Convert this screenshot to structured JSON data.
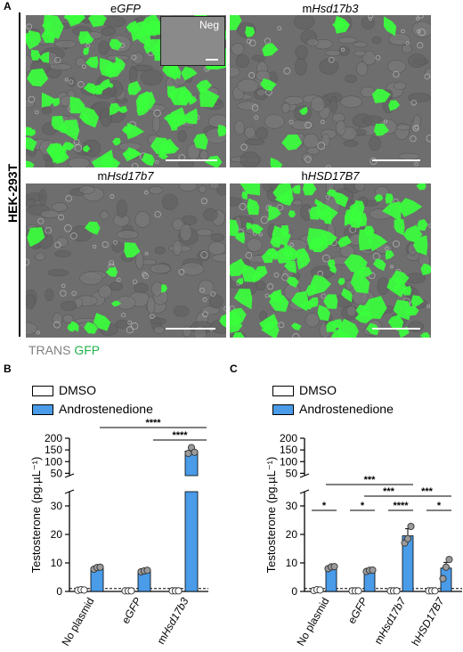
{
  "panel_a": {
    "letter": "A",
    "cell_line": "HEK-293T",
    "images": [
      {
        "title": "eGFP",
        "prefix": "e",
        "gene": "GFP",
        "green_density": 0.9
      },
      {
        "title": "mHsd17b3",
        "prefix": "m",
        "gene": "Hsd17b3",
        "green_density": 0.12
      },
      {
        "title": "mHsd17b7",
        "prefix": "m",
        "gene": "Hsd17b7",
        "green_density": 0.1
      },
      {
        "title": "hHSD17B7",
        "prefix": "h",
        "gene": "HSD17B7",
        "green_density": 0.95
      }
    ],
    "inset_label": "Neg",
    "caption_trans": "TRANS",
    "caption_gfp": "GFP",
    "colors": {
      "trans": "#808080",
      "gfp": "#22b14c",
      "fluor": "#39ff3c"
    }
  },
  "chart_data": [
    {
      "panel": "B",
      "type": "bar",
      "categories": [
        "No plasmid",
        "eGFP",
        "mHsd17b3"
      ],
      "series": [
        {
          "name": "DMSO",
          "values": [
            0.5,
            0.2,
            0.2
          ],
          "points": [
            [
              0.4,
              0.6,
              0.5
            ],
            [
              0.2,
              0.2,
              0.2
            ],
            [
              0.2,
              0.2,
              0.2
            ]
          ],
          "color": "#ffffff"
        },
        {
          "name": "Androstenedione",
          "values": [
            8.2,
            7.2,
            145
          ],
          "points": [
            [
              7.8,
              8.4,
              8.5
            ],
            [
              6.9,
              7.2,
              7.4
            ],
            [
              135,
              160,
              140
            ]
          ],
          "color": "#4a9be8"
        }
      ],
      "ylabel": "Testosterone (pg.µL⁻¹)",
      "ylim_lower": [
        0,
        35
      ],
      "ylim_upper": [
        40,
        200
      ],
      "yticks_lower": [
        0,
        10,
        20,
        30
      ],
      "yticks_upper": [
        50,
        100,
        150,
        200
      ],
      "dashed_line": 1,
      "annotations": [
        {
          "from": 0,
          "to": 2,
          "text": "****"
        },
        {
          "from": 1,
          "to": 2,
          "text": "****"
        }
      ]
    },
    {
      "panel": "C",
      "type": "bar",
      "categories": [
        "No plasmid",
        "eGFP",
        "mHsd17b7",
        "hHSD17B7"
      ],
      "series": [
        {
          "name": "DMSO",
          "values": [
            0.5,
            0.2,
            0.2,
            0.2
          ],
          "points": [
            [
              0.3,
              0.6,
              0.5
            ],
            [
              0.2,
              0.2,
              0.2
            ],
            [
              0.2,
              0.2,
              0.2
            ],
            [
              0.2,
              0.2,
              0.2
            ]
          ],
          "color": "#ffffff"
        },
        {
          "name": "Androstenedione",
          "values": [
            8.4,
            7.3,
            19.5,
            8.2
          ],
          "points": [
            [
              8.0,
              8.6,
              8.7
            ],
            [
              7.0,
              7.4,
              7.5
            ],
            [
              17.0,
              18.5,
              22.8
            ],
            [
              4.5,
              8.5,
              11.2
            ]
          ],
          "errors": [
            0.3,
            0.3,
            2.5,
            2.0
          ],
          "color": "#4a9be8"
        }
      ],
      "ylabel": "Testosterone (pg.µL⁻¹)",
      "ylim_lower": [
        0,
        35
      ],
      "ylim_upper": [
        40,
        200
      ],
      "yticks_lower": [
        0,
        10,
        20,
        30
      ],
      "yticks_upper": [
        50,
        100,
        150,
        200
      ],
      "dashed_line": 1,
      "annotations": [
        {
          "level": 0,
          "from_bar": [
            0,
            0
          ],
          "to_bar": [
            0,
            1
          ],
          "text": "*"
        },
        {
          "level": 0,
          "from_bar": [
            1,
            0
          ],
          "to_bar": [
            1,
            1
          ],
          "text": "*"
        },
        {
          "level": 0,
          "from_bar": [
            2,
            0
          ],
          "to_bar": [
            2,
            1
          ],
          "text": "****"
        },
        {
          "level": 0,
          "from_bar": [
            3,
            0
          ],
          "to_bar": [
            3,
            1
          ],
          "text": "*"
        },
        {
          "level": 1,
          "from_bar": [
            1,
            1
          ],
          "to_bar": [
            2,
            1
          ],
          "text": "***"
        },
        {
          "level": 1,
          "from_bar": [
            2,
            1
          ],
          "to_bar": [
            3,
            1
          ],
          "text": "***"
        },
        {
          "level": 2,
          "from_bar": [
            0,
            1
          ],
          "to_bar": [
            2,
            1
          ],
          "text": "***"
        }
      ]
    }
  ]
}
